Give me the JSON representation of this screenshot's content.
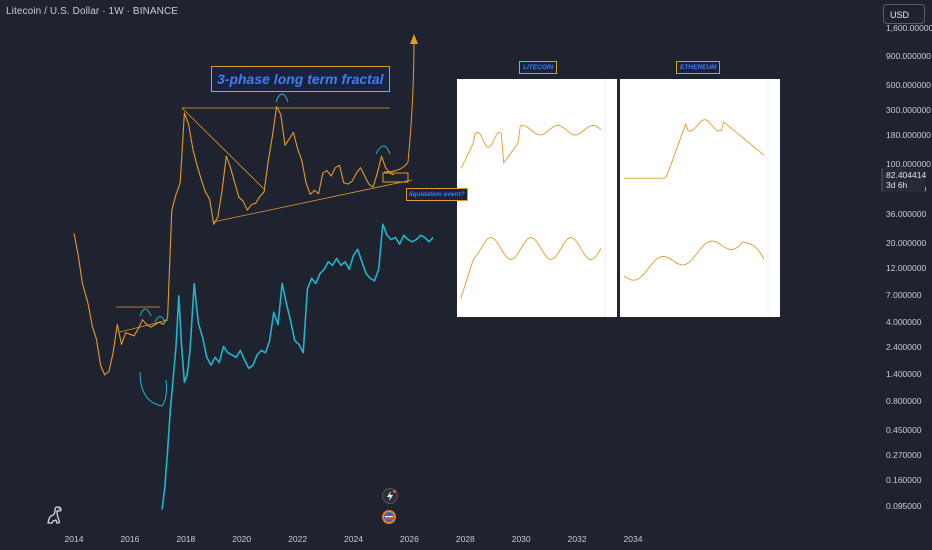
{
  "header": {
    "title": "Litecoin / U.S. Dollar · 1W · BINANCE"
  },
  "currency_button": {
    "label": "USD"
  },
  "price_tag": {
    "value": "82.404414",
    "countdown": "3d 6h"
  },
  "annotations": {
    "title": "3-phase long term fractal",
    "liquidation": "liquidation event?"
  },
  "mini_charts": [
    {
      "title": "LITECOIN"
    },
    {
      "title": "ETHEREUM"
    },
    {
      "title": ""
    },
    {
      "title": ""
    }
  ],
  "colors": {
    "background": "#1f2330",
    "ltc": "#e39a2c",
    "overlay": "#1fb5cc",
    "accent_text": "#3f7ee8"
  },
  "icons": [
    "dinosaur-logo-icon",
    "lightning-icon",
    "us-flag-icon"
  ],
  "chart_data": {
    "type": "line",
    "title": "",
    "xlabel": "",
    "ylabel": "",
    "y_scale": "log",
    "y_ticks": [
      {
        "value": 1600,
        "label": "1,600.000000"
      },
      {
        "value": 900,
        "label": "900.000000"
      },
      {
        "value": 500,
        "label": "500.000000"
      },
      {
        "value": 300,
        "label": "300.000000"
      },
      {
        "value": 180,
        "label": "180.000000"
      },
      {
        "value": 100,
        "label": "100.000000"
      },
      {
        "value": 60,
        "label": "60.000000"
      },
      {
        "value": 36,
        "label": "36.000000"
      },
      {
        "value": 20,
        "label": "20.000000"
      },
      {
        "value": 12,
        "label": "12.000000"
      },
      {
        "value": 7,
        "label": "7.000000"
      },
      {
        "value": 4,
        "label": "4.000000"
      },
      {
        "value": 2.4,
        "label": "2.400000"
      },
      {
        "value": 1.4,
        "label": "1.400000"
      },
      {
        "value": 0.8,
        "label": "0.800000"
      },
      {
        "value": 0.45,
        "label": "0.450000"
      },
      {
        "value": 0.27,
        "label": "0.270000"
      },
      {
        "value": 0.16,
        "label": "0.160000"
      },
      {
        "value": 0.095,
        "label": "0.095000"
      }
    ],
    "x_ticks": [
      "2014",
      "2016",
      "2018",
      "2020",
      "2022",
      "2024",
      "2026",
      "2028",
      "2030",
      "2032",
      "2034"
    ],
    "xlim": [
      2013.3,
      2035.6
    ],
    "ylim": [
      0.07,
      2000
    ],
    "grid": false,
    "series": [
      {
        "color": "#e39a2c",
        "points": [
          [
            2014.0,
            25
          ],
          [
            2014.15,
            16
          ],
          [
            2014.3,
            9
          ],
          [
            2014.5,
            6
          ],
          [
            2014.65,
            3.8
          ],
          [
            2014.8,
            2.9
          ],
          [
            2014.95,
            1.7
          ],
          [
            2015.1,
            1.4
          ],
          [
            2015.25,
            1.5
          ],
          [
            2015.4,
            2.2
          ],
          [
            2015.55,
            3.9
          ],
          [
            2015.7,
            2.6
          ],
          [
            2015.85,
            3.3
          ],
          [
            2016.0,
            3.2
          ],
          [
            2016.15,
            3.1
          ],
          [
            2016.3,
            3.6
          ],
          [
            2016.45,
            4.3
          ],
          [
            2016.6,
            3.9
          ],
          [
            2016.75,
            3.7
          ],
          [
            2016.9,
            3.9
          ],
          [
            2017.05,
            4.1
          ],
          [
            2017.2,
            3.9
          ],
          [
            2017.35,
            4.5
          ],
          [
            2017.5,
            40
          ],
          [
            2017.65,
            55
          ],
          [
            2017.8,
            70
          ],
          [
            2017.95,
            290
          ],
          [
            2018.1,
            230
          ],
          [
            2018.25,
            140
          ],
          [
            2018.4,
            100
          ],
          [
            2018.55,
            75
          ],
          [
            2018.7,
            58
          ],
          [
            2018.85,
            50
          ],
          [
            2019.0,
            30
          ],
          [
            2019.15,
            35
          ],
          [
            2019.3,
            60
          ],
          [
            2019.45,
            120
          ],
          [
            2019.6,
            95
          ],
          [
            2019.75,
            70
          ],
          [
            2019.9,
            52
          ],
          [
            2020.05,
            48
          ],
          [
            2020.2,
            40
          ],
          [
            2020.35,
            45
          ],
          [
            2020.5,
            46
          ],
          [
            2020.65,
            53
          ],
          [
            2020.8,
            58
          ],
          [
            2020.95,
            110
          ],
          [
            2021.1,
            180
          ],
          [
            2021.25,
            330
          ],
          [
            2021.4,
            280
          ],
          [
            2021.55,
            150
          ],
          [
            2021.7,
            170
          ],
          [
            2021.85,
            195
          ],
          [
            2022.0,
            140
          ],
          [
            2022.15,
            110
          ],
          [
            2022.3,
            70
          ],
          [
            2022.45,
            55
          ],
          [
            2022.6,
            60
          ],
          [
            2022.75,
            56
          ],
          [
            2022.9,
            85
          ],
          [
            2023.05,
            90
          ],
          [
            2023.2,
            80
          ],
          [
            2023.35,
            95
          ],
          [
            2023.5,
            100
          ],
          [
            2023.65,
            70
          ],
          [
            2023.8,
            68
          ],
          [
            2023.95,
            72
          ],
          [
            2024.1,
            85
          ],
          [
            2024.25,
            95
          ],
          [
            2024.4,
            80
          ],
          [
            2024.55,
            68
          ],
          [
            2024.7,
            64
          ],
          [
            2024.85,
            85
          ],
          [
            2025.0,
            120
          ],
          [
            2025.15,
            95
          ],
          [
            2025.3,
            85
          ],
          [
            2025.45,
            82
          ]
        ]
      },
      {
        "color": "#1fb5cc",
        "points": [
          [
            2017.15,
            0.09
          ],
          [
            2017.25,
            0.14
          ],
          [
            2017.35,
            0.3
          ],
          [
            2017.45,
            0.7
          ],
          [
            2017.55,
            1.3
          ],
          [
            2017.65,
            2.5
          ],
          [
            2017.75,
            7
          ],
          [
            2017.85,
            2.5
          ],
          [
            2017.95,
            1.2
          ],
          [
            2018.05,
            1.4
          ],
          [
            2018.15,
            2.3
          ],
          [
            2018.3,
            9
          ],
          [
            2018.45,
            4
          ],
          [
            2018.6,
            3
          ],
          [
            2018.75,
            2
          ],
          [
            2018.9,
            1.7
          ],
          [
            2019.05,
            2.0
          ],
          [
            2019.2,
            1.8
          ],
          [
            2019.35,
            2.5
          ],
          [
            2019.5,
            2.2
          ],
          [
            2019.65,
            2.1
          ],
          [
            2019.8,
            2.0
          ],
          [
            2019.95,
            2.3
          ],
          [
            2020.1,
            1.9
          ],
          [
            2020.25,
            1.6
          ],
          [
            2020.4,
            1.7
          ],
          [
            2020.55,
            2.1
          ],
          [
            2020.7,
            2.3
          ],
          [
            2020.85,
            2.2
          ],
          [
            2021.0,
            2.8
          ],
          [
            2021.15,
            5
          ],
          [
            2021.3,
            3.9
          ],
          [
            2021.45,
            9
          ],
          [
            2021.6,
            6
          ],
          [
            2021.75,
            4.2
          ],
          [
            2021.9,
            2.8
          ],
          [
            2022.05,
            2.6
          ],
          [
            2022.2,
            2.2
          ],
          [
            2022.35,
            8
          ],
          [
            2022.5,
            10
          ],
          [
            2022.65,
            9
          ],
          [
            2022.8,
            11
          ],
          [
            2022.95,
            12
          ],
          [
            2023.1,
            14
          ],
          [
            2023.25,
            13
          ],
          [
            2023.4,
            15
          ],
          [
            2023.55,
            13
          ],
          [
            2023.7,
            14
          ],
          [
            2023.85,
            12
          ],
          [
            2024.0,
            16
          ],
          [
            2024.15,
            18
          ],
          [
            2024.3,
            14
          ],
          [
            2024.45,
            11
          ],
          [
            2024.6,
            10
          ],
          [
            2024.75,
            9.5
          ],
          [
            2024.9,
            12
          ],
          [
            2025.05,
            30
          ],
          [
            2025.2,
            24
          ],
          [
            2025.35,
            22
          ],
          [
            2025.5,
            23
          ],
          [
            2025.65,
            20
          ],
          [
            2025.8,
            24
          ],
          [
            2025.95,
            22
          ],
          [
            2026.1,
            21
          ],
          [
            2026.25,
            22
          ],
          [
            2026.4,
            24
          ],
          [
            2026.55,
            23
          ],
          [
            2026.7,
            21
          ],
          [
            2026.85,
            23
          ]
        ]
      }
    ]
  }
}
